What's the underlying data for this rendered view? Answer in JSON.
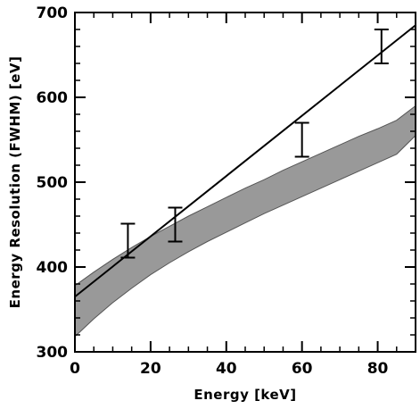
{
  "chart_data": {
    "type": "line",
    "title": "",
    "xlabel": "Energy [keV]",
    "ylabel": "Energy Resolution (FWHM) [eV]",
    "xlim": [
      0,
      90
    ],
    "ylim": [
      300,
      700
    ],
    "xticks": [
      0,
      20,
      40,
      60,
      80
    ],
    "yticks": [
      300,
      400,
      500,
      600,
      700
    ],
    "grid": false,
    "legend": "none",
    "series": [
      {
        "style": "band",
        "fill_color": "#999999",
        "x": [
          0,
          5,
          10,
          15,
          20,
          25,
          30,
          35,
          40,
          45,
          50,
          55,
          60,
          65,
          70,
          75,
          80,
          85,
          90
        ],
        "upper": [
          378,
          394,
          409,
          423,
          436,
          448,
          460,
          471,
          482,
          493,
          503,
          514,
          524,
          534,
          544,
          554,
          563,
          573,
          590
        ],
        "lower": [
          318,
          339,
          358,
          375,
          391,
          405,
          418,
          430,
          441,
          452,
          463,
          473,
          483,
          493,
          503,
          513,
          523,
          533,
          555
        ]
      },
      {
        "style": "line",
        "x": [
          0,
          90
        ],
        "y": [
          365,
          685
        ]
      },
      {
        "style": "errorbar",
        "x": [
          14,
          26.5,
          60,
          81
        ],
        "y": [
          431,
          450,
          550,
          660
        ],
        "yerr_low": [
          411,
          430,
          530,
          640
        ],
        "yerr_high": [
          451,
          470,
          570,
          680
        ]
      }
    ]
  }
}
